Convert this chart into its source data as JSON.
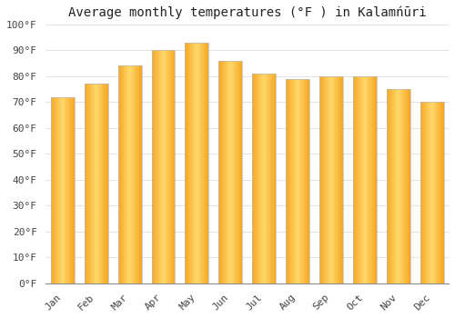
{
  "title": "Average monthly temperatures (°F ) in Kalamńūri",
  "months": [
    "Jan",
    "Feb",
    "Mar",
    "Apr",
    "May",
    "Jun",
    "Jul",
    "Aug",
    "Sep",
    "Oct",
    "Nov",
    "Dec"
  ],
  "values": [
    72,
    77,
    84,
    90,
    93,
    86,
    81,
    79,
    80,
    80,
    75,
    70
  ],
  "bar_color_center": "#FFD86A",
  "bar_color_edge": "#F5A623",
  "bar_border_color": "#BBBBBB",
  "ylim": [
    0,
    100
  ],
  "yticks": [
    0,
    10,
    20,
    30,
    40,
    50,
    60,
    70,
    80,
    90,
    100
  ],
  "ytick_labels": [
    "0°F",
    "10°F",
    "20°F",
    "30°F",
    "40°F",
    "50°F",
    "60°F",
    "70°F",
    "80°F",
    "90°F",
    "100°F"
  ],
  "background_color": "#FFFFFF",
  "grid_color": "#DDDDDD",
  "title_fontsize": 10,
  "tick_fontsize": 8,
  "bar_width": 0.7,
  "n_gradient_cols": 40
}
